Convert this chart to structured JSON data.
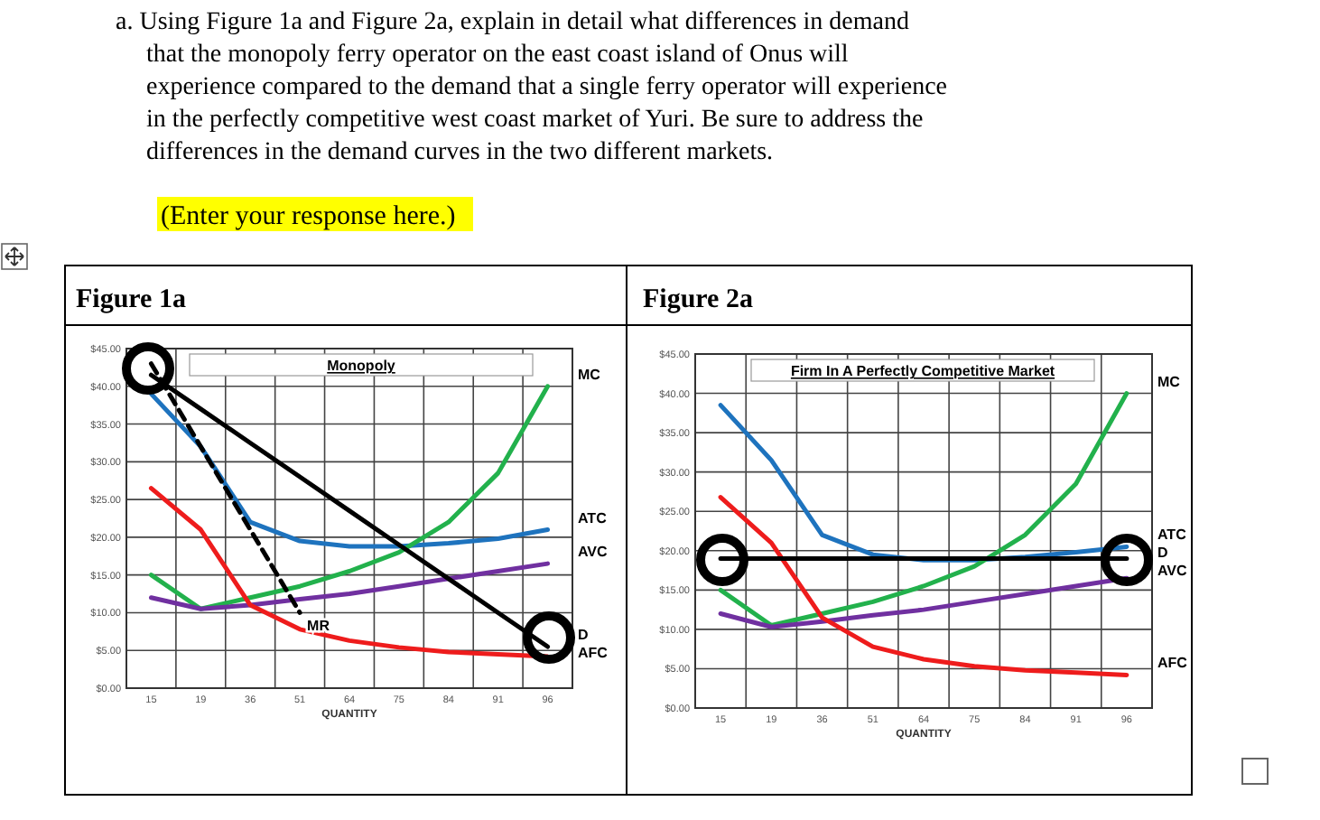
{
  "chart_data": [
    {
      "type": "line",
      "title": "Monopoly",
      "subtitle": "Figure 1a",
      "xlabel": "QUANTITY",
      "annotations": [
        "a. Using Figure 1a and Figure 2a, explain in detail what differences in demand that the monopoly ferry operator on the east coast island of Onus will experience compared to the demand that a single ferry operator will experience in the perfectly competitive west coast market of Yuri. Be sure to address the differences in the demand curves in the two different markets.",
        "(Enter your response here.)"
      ],
      "categories": [
        "15",
        "19",
        "36",
        "51",
        "64",
        "75",
        "84",
        "91",
        "96"
      ],
      "ylim": [
        0,
        45
      ],
      "yticks": [
        {
          "value": 0,
          "label": "$0.00"
        },
        {
          "value": 5,
          "label": "$5.00"
        },
        {
          "value": 10,
          "label": "$10.00"
        },
        {
          "value": 15,
          "label": "$15.00"
        },
        {
          "value": 20,
          "label": "$20.00"
        },
        {
          "value": 25,
          "label": "$25.00"
        },
        {
          "value": 30,
          "label": "$30.00"
        },
        {
          "value": 35,
          "label": "$35.00"
        },
        {
          "value": 40,
          "label": "$40.00"
        },
        {
          "value": 45,
          "label": "$45.00"
        }
      ],
      "grid": true,
      "legend": false,
      "marker": "none",
      "series": [
        {
          "name": "ATC",
          "color": "#1e73be",
          "values": [
            39,
            32,
            22,
            19.5,
            18.8,
            18.8,
            19.2,
            19.8,
            21
          ]
        },
        {
          "name": "MC",
          "color": "#22b14c",
          "values": [
            15,
            10.5,
            12,
            13.5,
            15.5,
            18,
            22,
            28.5,
            40
          ]
        },
        {
          "name": "AVC",
          "color": "#7030a0",
          "values": [
            12,
            10.5,
            11,
            11.8,
            12.5,
            13.5,
            14.5,
            15.5,
            16.5
          ]
        },
        {
          "name": "AFC",
          "color": "#ee1c1c",
          "values": [
            26.5,
            21,
            11,
            7.8,
            6.3,
            5.4,
            4.8,
            4.5,
            4.2
          ]
        },
        {
          "name": "MR",
          "color": "#000000",
          "line_style": "dashed",
          "values": [
            43,
            32,
            21,
            10,
            null,
            null,
            null,
            null,
            null
          ]
        },
        {
          "name": "D",
          "color": "#000000",
          "values": [
            41.5,
            37,
            32.5,
            28,
            23.5,
            19,
            14.5,
            10,
            5.5
          ]
        }
      ]
    },
    {
      "type": "line",
      "title": "Firm In A Perfectly Competitive Market",
      "subtitle": "Figure 2a",
      "xlabel": "QUANTITY",
      "categories": [
        "15",
        "19",
        "36",
        "51",
        "64",
        "75",
        "84",
        "91",
        "96"
      ],
      "ylim": [
        0,
        45
      ],
      "yticks": [
        {
          "value": 0,
          "label": "$0.00"
        },
        {
          "value": 5,
          "label": "$5.00"
        },
        {
          "value": 10,
          "label": "$10.00"
        },
        {
          "value": 15,
          "label": "$15.00"
        },
        {
          "value": 20,
          "label": "$20.00"
        },
        {
          "value": 25,
          "label": "$25.00"
        },
        {
          "value": 30,
          "label": "$30.00"
        },
        {
          "value": 35,
          "label": "$35.00"
        },
        {
          "value": 40,
          "label": "$40.00"
        },
        {
          "value": 45,
          "label": "$45.00"
        }
      ],
      "grid": true,
      "legend": false,
      "marker": "none",
      "series": [
        {
          "name": "ATC",
          "color": "#1e73be",
          "values": [
            38.5,
            31.5,
            22,
            19.5,
            18.8,
            18.8,
            19.2,
            19.8,
            20.5
          ]
        },
        {
          "name": "MC",
          "color": "#22b14c",
          "values": [
            15,
            10.5,
            12,
            13.5,
            15.5,
            18,
            22,
            28.5,
            40
          ]
        },
        {
          "name": "AVC",
          "color": "#7030a0",
          "values": [
            12,
            10.3,
            11,
            11.8,
            12.5,
            13.5,
            14.5,
            15.5,
            16.5
          ]
        },
        {
          "name": "AFC",
          "color": "#ee1c1c",
          "values": [
            26.8,
            21,
            11.5,
            7.8,
            6.2,
            5.3,
            4.8,
            4.5,
            4.2
          ]
        },
        {
          "name": "D",
          "color": "#000000",
          "values": [
            19,
            19,
            19,
            19,
            19,
            19,
            19,
            19,
            19
          ]
        }
      ]
    }
  ]
}
